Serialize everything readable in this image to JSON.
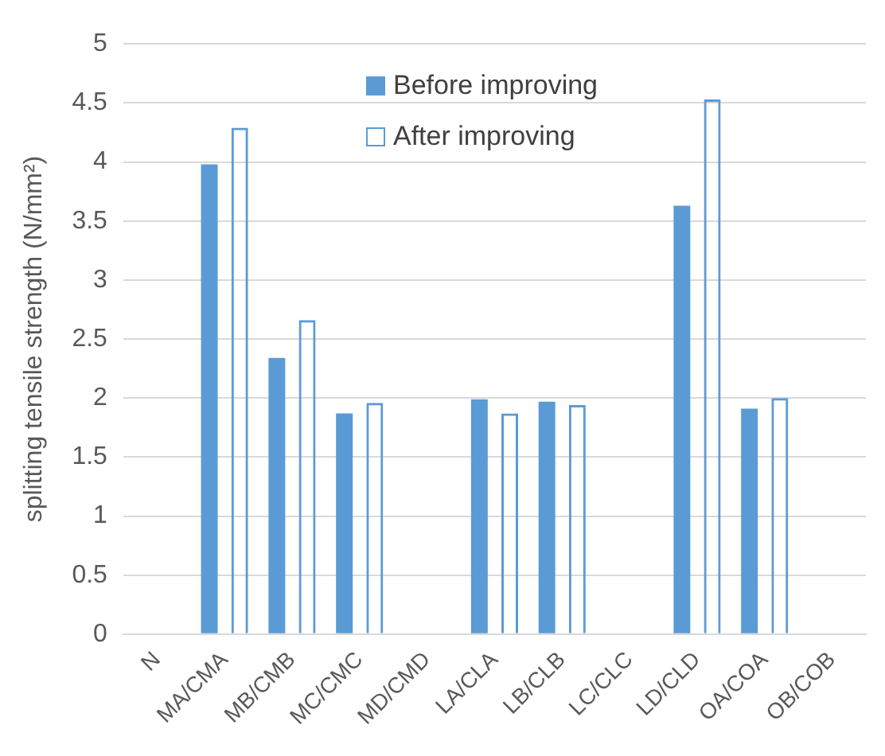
{
  "chart_data": {
    "type": "bar",
    "ylabel": "splitting tensile strength (N/mm²)",
    "categories": [
      "N",
      "MA/CMA",
      "MB/CMB",
      "MC/CMC",
      "MD/CMD",
      "LA/CLA",
      "LB/CLB",
      "LC/CLC",
      "LD/CLD",
      "OA/COA",
      "OB/COB"
    ],
    "series": [
      {
        "name": "Before improving",
        "color": "#5b9bd5",
        "values": [
          null,
          3.98,
          2.34,
          1.87,
          null,
          1.99,
          1.97,
          null,
          3.63,
          1.91,
          null
        ]
      },
      {
        "name": "After improving",
        "color": "#5b9bd5",
        "values": [
          null,
          4.29,
          2.66,
          1.96,
          null,
          1.87,
          1.94,
          null,
          4.53,
          2.0,
          null
        ]
      }
    ],
    "ylim": [
      0,
      5
    ],
    "yticks": [
      0,
      0.5,
      1,
      1.5,
      2,
      2.5,
      3,
      3.5,
      4,
      4.5,
      5
    ],
    "grid": "y",
    "legend": "top"
  }
}
